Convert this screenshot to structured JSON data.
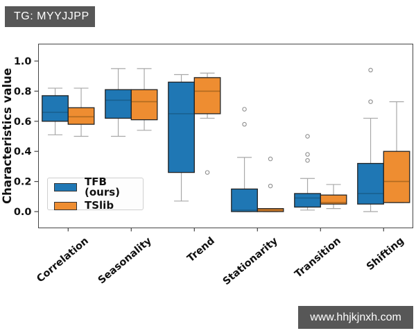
{
  "overlays": {
    "tag_label": "TG: MYYJJPP",
    "watermark_label": "www.hhjkjnxh.com",
    "overlay_bg": "#575757",
    "overlay_text_color": "#ffffff"
  },
  "chart_data": {
    "type": "boxplot",
    "title": "",
    "xlabel": "",
    "ylabel": "Characteristics value",
    "categories": [
      "Correlation",
      "Seasonality",
      "Trend",
      "Stationarity",
      "Transition",
      "Shifting"
    ],
    "yticks": [
      0.0,
      0.2,
      0.4,
      0.6,
      0.8,
      1.0
    ],
    "ylim": [
      -0.11,
      1.12
    ],
    "grid": false,
    "legend_position": "lower-left-inside",
    "style": {
      "spine_color": "#444444",
      "tick_label_color": "#111111",
      "whisker_color": "#a8a8a8",
      "box_edge_color": "#222222",
      "outlier_color": "#8f8f8f",
      "background": "#ffffff"
    },
    "series": [
      {
        "name": "TFB (ours)",
        "color": "#1f77b4",
        "median_color": "#19608f",
        "boxes": [
          {
            "category": "Correlation",
            "whislo": 0.51,
            "q1": 0.6,
            "med": 0.66,
            "q3": 0.77,
            "whishi": 0.82,
            "outliers": []
          },
          {
            "category": "Seasonality",
            "whislo": 0.5,
            "q1": 0.62,
            "med": 0.74,
            "q3": 0.81,
            "whishi": 0.95,
            "outliers": []
          },
          {
            "category": "Trend",
            "whislo": 0.07,
            "q1": 0.26,
            "med": 0.65,
            "q3": 0.86,
            "whishi": 0.91,
            "outliers": []
          },
          {
            "category": "Stationarity",
            "whislo": 0.0,
            "q1": 0.0,
            "med": 0.01,
            "q3": 0.15,
            "whishi": 0.36,
            "outliers": [
              0.58,
              0.68
            ]
          },
          {
            "category": "Transition",
            "whislo": 0.01,
            "q1": 0.03,
            "med": 0.09,
            "q3": 0.12,
            "whishi": 0.22,
            "outliers": [
              0.34,
              0.38,
              0.5
            ]
          },
          {
            "category": "Shifting",
            "whislo": 0.0,
            "q1": 0.05,
            "med": 0.12,
            "q3": 0.32,
            "whishi": 0.62,
            "outliers": [
              0.73,
              0.94
            ]
          }
        ]
      },
      {
        "name": "TSlib",
        "color": "#ee8d31",
        "median_color": "#b06a20",
        "boxes": [
          {
            "category": "Correlation",
            "whislo": 0.5,
            "q1": 0.58,
            "med": 0.63,
            "q3": 0.69,
            "whishi": 0.82,
            "outliers": []
          },
          {
            "category": "Seasonality",
            "whislo": 0.54,
            "q1": 0.61,
            "med": 0.73,
            "q3": 0.81,
            "whishi": 0.95,
            "outliers": []
          },
          {
            "category": "Trend",
            "whislo": 0.62,
            "q1": 0.65,
            "med": 0.8,
            "q3": 0.89,
            "whishi": 0.92,
            "outliers": [
              0.26
            ]
          },
          {
            "category": "Stationarity",
            "whislo": 0.0,
            "q1": 0.0,
            "med": 0.01,
            "q3": 0.02,
            "whishi": 0.02,
            "outliers": [
              0.17,
              0.35
            ]
          },
          {
            "category": "Transition",
            "whislo": 0.02,
            "q1": 0.05,
            "med": 0.06,
            "q3": 0.11,
            "whishi": 0.18,
            "outliers": []
          },
          {
            "category": "Shifting",
            "whislo": 0.06,
            "q1": 0.06,
            "med": 0.2,
            "q3": 0.4,
            "whishi": 0.73,
            "outliers": []
          }
        ]
      }
    ]
  }
}
